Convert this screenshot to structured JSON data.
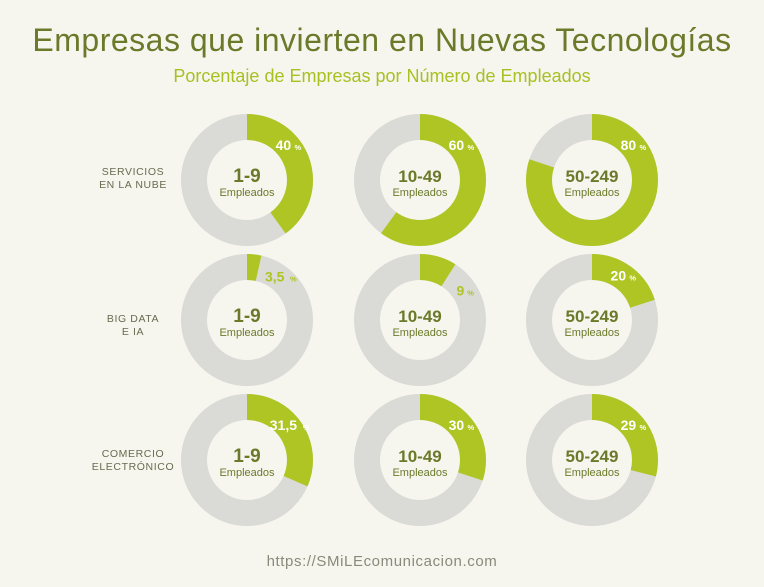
{
  "title": "Empresas que invierten en Nuevas Tecnologías",
  "subtitle": "Porcentaje de Empresas por Número de Empleados",
  "footer": "https://SMiLEcomunicacion.com",
  "colors": {
    "accent": "#aec523",
    "track": "#dadad6",
    "center_text": "#6b7a2a",
    "title": "#6b7a2a",
    "subtitle": "#a9bf22"
  },
  "chart_data": {
    "type": "pie",
    "center_sublabel": "Empleados",
    "percent_symbol": "%",
    "categories": [
      "1-9",
      "10-49",
      "50-249"
    ],
    "rows": [
      {
        "label_lines": [
          "SERVICIOS",
          "EN LA NUBE"
        ],
        "values": [
          40,
          60,
          80
        ],
        "labels": [
          "40",
          "60",
          "80"
        ]
      },
      {
        "label_lines": [
          "BIG DATA",
          "E IA"
        ],
        "values": [
          3.5,
          9,
          20
        ],
        "labels": [
          "3,5",
          "9",
          "20"
        ]
      },
      {
        "label_lines": [
          "COMERCIO",
          "ELECTRÓNICO"
        ],
        "values": [
          31.5,
          30,
          29
        ],
        "labels": [
          "31,5",
          "30",
          "29"
        ]
      }
    ]
  }
}
